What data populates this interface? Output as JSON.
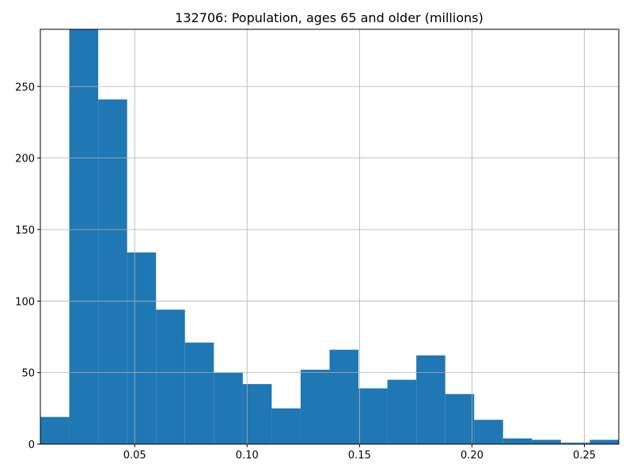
{
  "chart_data": {
    "type": "bar",
    "title": "132706: Population, ages 65 and older (millions)",
    "xlabel": "",
    "ylabel": "",
    "bin_edges": [
      0.00807,
      0.02093,
      0.03379,
      0.04665,
      0.05951,
      0.07237,
      0.08523,
      0.09809,
      0.11095,
      0.12381,
      0.13667,
      0.14953,
      0.16239,
      0.17525,
      0.18811,
      0.20097,
      0.21383,
      0.22669,
      0.23955,
      0.25241,
      0.26527
    ],
    "values": [
      19,
      290,
      241,
      134,
      94,
      71,
      50,
      42,
      25,
      52,
      66,
      39,
      45,
      62,
      35,
      17,
      4,
      3,
      1,
      3
    ],
    "xlim": [
      0.00807,
      0.26527
    ],
    "ylim": [
      0,
      290
    ],
    "x_ticks": [
      0.05,
      0.1,
      0.15,
      0.2,
      0.25
    ],
    "x_tick_labels": [
      "0.05",
      "0.10",
      "0.15",
      "0.20",
      "0.25"
    ],
    "y_ticks": [
      0,
      50,
      100,
      150,
      200,
      250
    ],
    "y_tick_labels": [
      "0",
      "50",
      "100",
      "150",
      "200",
      "250"
    ],
    "grid": true,
    "bar_color": "#1f77b4"
  }
}
